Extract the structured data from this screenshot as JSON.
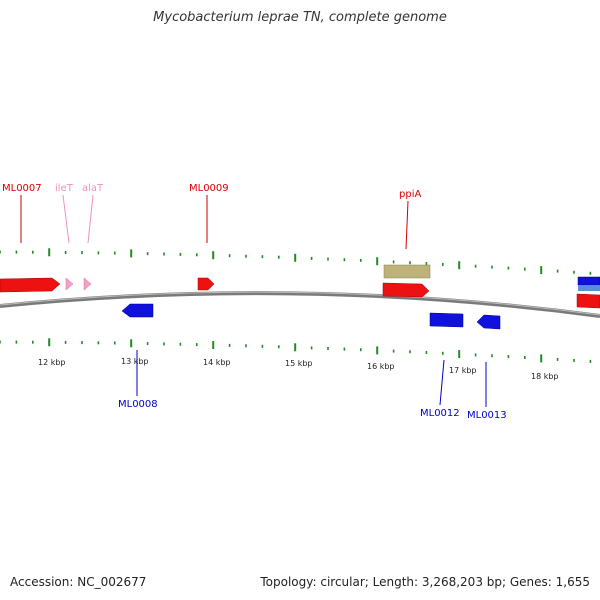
{
  "title": "Mycobacterium leprae TN, complete genome",
  "footer": {
    "accession": "Accession: NC_002677",
    "summary": "Topology: circular; Length: 3,268,203 bp; Genes: 1,655"
  },
  "colors": {
    "forward_gene": "#ee1111",
    "reverse_gene": "#1111dd",
    "rna_gene": "#f4a0c8",
    "misc_feature": "#bdb27a",
    "backbone": "#888888",
    "tick": "#228b22"
  },
  "scale": {
    "labels": [
      "12 kbp",
      "13 kbp",
      "14 kbp",
      "15 kbp",
      "16 kbp",
      "17 kbp",
      "18 kbp"
    ]
  },
  "labels": {
    "forward": [
      {
        "name": "ML0007"
      },
      {
        "name": "ML0009"
      },
      {
        "name": "ppiA"
      }
    ],
    "rna": [
      {
        "name": "ileT"
      },
      {
        "name": "alaT"
      }
    ],
    "reverse": [
      {
        "name": "ML0008"
      },
      {
        "name": "ML0012"
      },
      {
        "name": "ML0013"
      }
    ]
  }
}
